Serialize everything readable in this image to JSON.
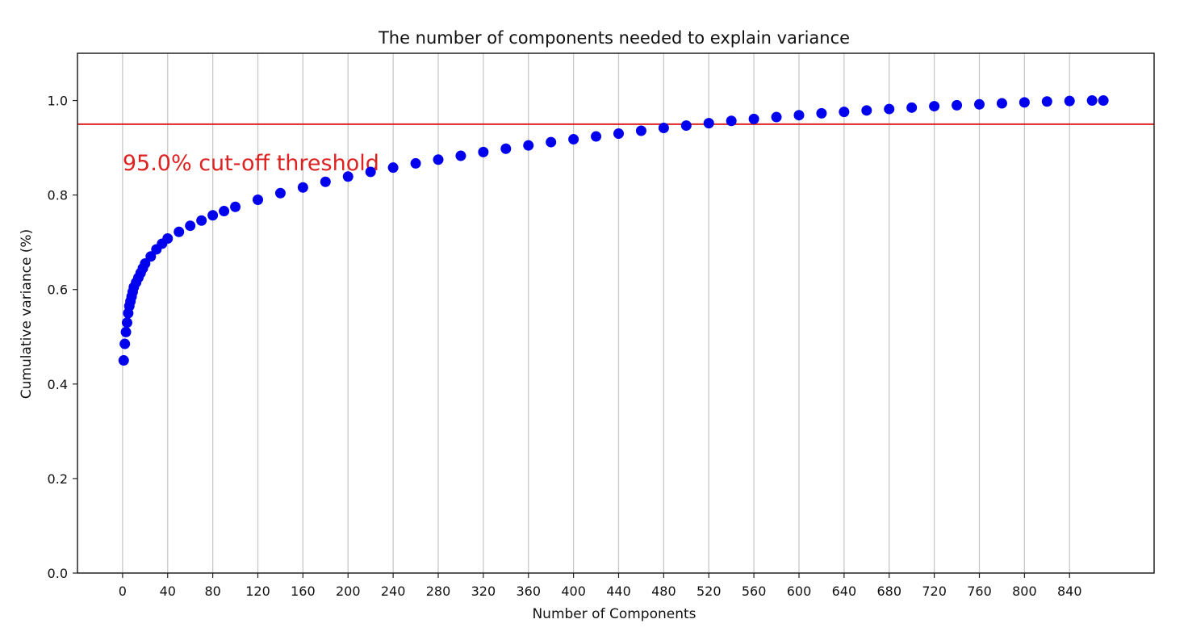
{
  "chart_data": {
    "type": "scatter",
    "title": "The number of components needed to explain variance",
    "xlabel": "Number of Components",
    "ylabel": "Cumulative variance (%)",
    "xlim": [
      -40,
      915
    ],
    "ylim": [
      0.0,
      1.1
    ],
    "grid": {
      "x": true,
      "y": false
    },
    "x_ticks": [
      0,
      40,
      80,
      120,
      160,
      200,
      240,
      280,
      320,
      360,
      400,
      440,
      480,
      520,
      560,
      600,
      640,
      680,
      720,
      760,
      800,
      840
    ],
    "y_ticks": [
      0.0,
      0.2,
      0.4,
      0.6,
      0.8,
      1.0
    ],
    "y_tick_labels": [
      "0.0",
      "0.2",
      "0.4",
      "0.6",
      "0.8",
      "1.0"
    ],
    "series": [
      {
        "color": "#0000ee",
        "x": [
          1,
          2,
          3,
          4,
          5,
          6,
          7,
          8,
          9,
          10,
          12,
          14,
          16,
          18,
          20,
          25,
          30,
          35,
          40,
          50,
          60,
          70,
          80,
          90,
          100,
          120,
          140,
          160,
          180,
          200,
          220,
          240,
          260,
          280,
          300,
          320,
          340,
          360,
          380,
          400,
          420,
          440,
          460,
          480,
          500,
          520,
          540,
          560,
          580,
          600,
          620,
          640,
          660,
          680,
          700,
          720,
          740,
          760,
          780,
          800,
          820,
          840,
          860,
          870
        ],
        "y": [
          0.45,
          0.485,
          0.51,
          0.53,
          0.55,
          0.565,
          0.575,
          0.585,
          0.595,
          0.605,
          0.615,
          0.625,
          0.635,
          0.645,
          0.655,
          0.67,
          0.685,
          0.697,
          0.708,
          0.722,
          0.735,
          0.746,
          0.757,
          0.766,
          0.775,
          0.79,
          0.804,
          0.816,
          0.828,
          0.839,
          0.849,
          0.858,
          0.867,
          0.875,
          0.883,
          0.891,
          0.898,
          0.905,
          0.912,
          0.918,
          0.924,
          0.93,
          0.936,
          0.942,
          0.947,
          0.952,
          0.957,
          0.961,
          0.965,
          0.969,
          0.973,
          0.976,
          0.979,
          0.982,
          0.985,
          0.988,
          0.99,
          0.992,
          0.994,
          0.996,
          0.998,
          0.999,
          1.0,
          1.0
        ]
      }
    ],
    "threshold": {
      "y": 0.95,
      "color": "#dd2222",
      "label": "95.0% cut-off threshold"
    }
  }
}
